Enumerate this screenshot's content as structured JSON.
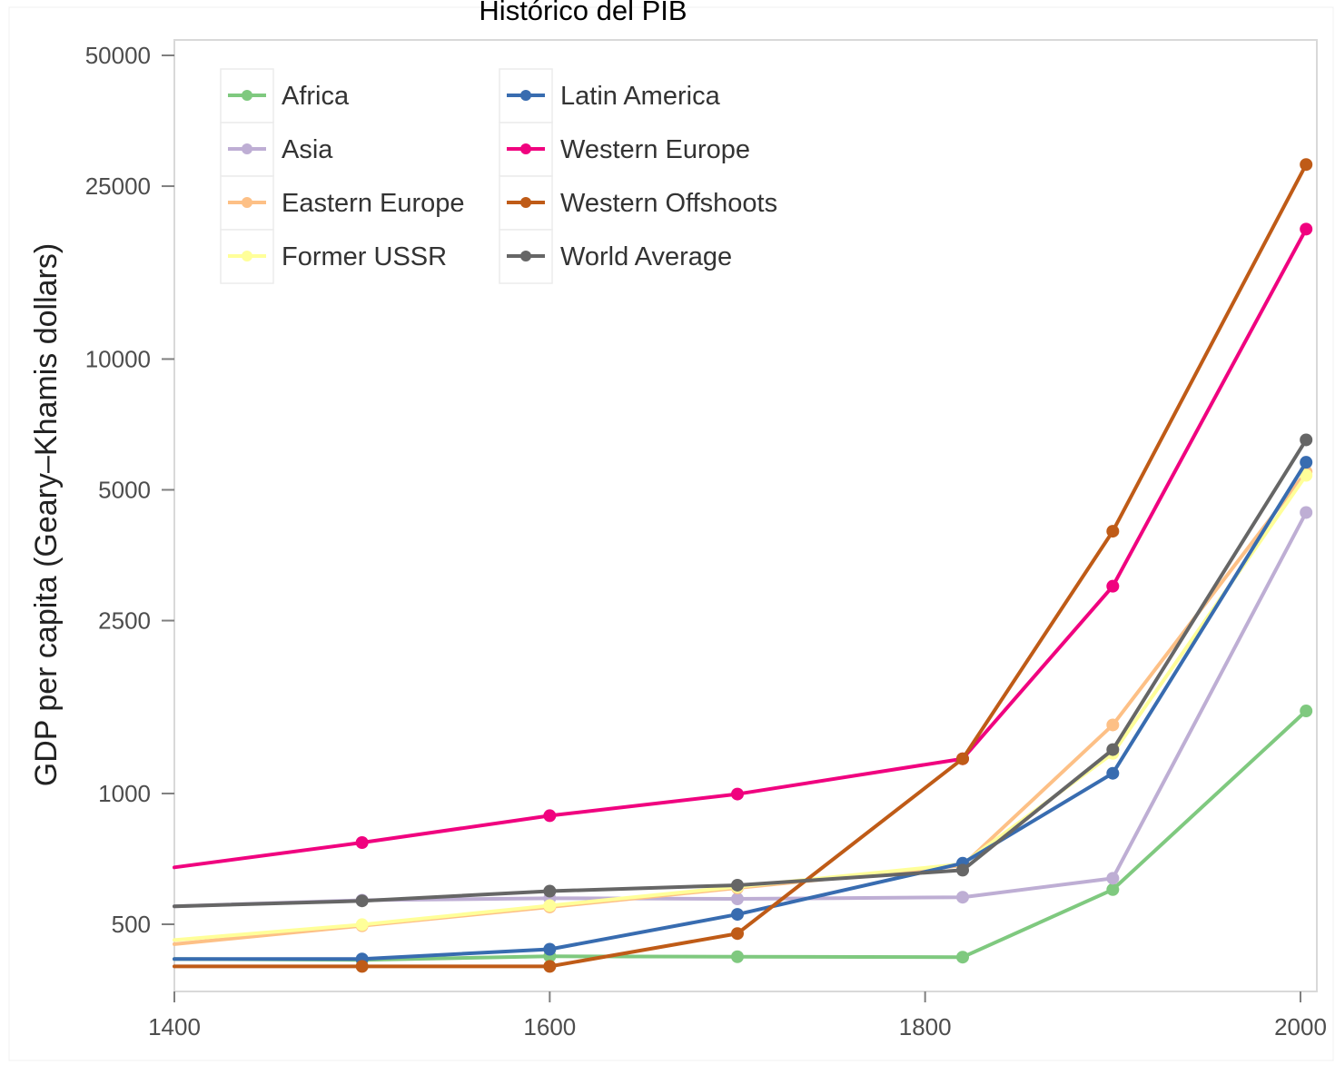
{
  "chart_data": {
    "type": "line",
    "title": "Histórico del  PIB",
    "xlabel": "",
    "ylabel": "GDP per capita (Geary–Khamis dollars)",
    "x_ticks": [
      "1400",
      "1600",
      "1800",
      "2000"
    ],
    "y_ticks": [
      "500",
      "1000",
      "2500",
      "5000",
      "10000",
      "25000",
      "50000"
    ],
    "y_scale": "log",
    "xlim": [
      1400,
      2003
    ],
    "ylim": [
      340,
      52000
    ],
    "grid": false,
    "legend_position": "top-left",
    "series": [
      {
        "name": "Africa",
        "color": "#7fc97f",
        "x": [
          1400,
          1500,
          1600,
          1700,
          1820,
          1900,
          2003
        ],
        "y": [
          416,
          414,
          422,
          421,
          420,
          601,
          1549
        ]
      },
      {
        "name": "Asia",
        "color": "#beaed4",
        "x": [
          1400,
          1500,
          1600,
          1700,
          1820,
          1900,
          2003
        ],
        "y": [
          550,
          568,
          574,
          572,
          577,
          638,
          4434
        ]
      },
      {
        "name": "Eastern Europe",
        "color": "#fdc086",
        "x": [
          1400,
          1500,
          1600,
          1700,
          1820,
          1900,
          2003
        ],
        "y": [
          450,
          496,
          548,
          606,
          683,
          1438,
          5500
        ]
      },
      {
        "name": "Former USSR",
        "color": "#ffff99",
        "x": [
          1400,
          1500,
          1600,
          1700,
          1820,
          1900,
          2003
        ],
        "y": [
          460,
          499,
          552,
          610,
          688,
          1237,
          5400
        ]
      },
      {
        "name": "Latin America",
        "color": "#386cb0",
        "x": [
          1400,
          1500,
          1600,
          1700,
          1820,
          1900,
          2003
        ],
        "y": [
          416,
          416,
          438,
          527,
          691,
          1113,
          5786
        ]
      },
      {
        "name": "Western Europe",
        "color": "#f0027f",
        "x": [
          1400,
          1500,
          1600,
          1700,
          1820,
          1900,
          2003
        ],
        "y": [
          676,
          771,
          889,
          997,
          1202,
          3000,
          19912
        ]
      },
      {
        "name": "Western Offshoots",
        "color": "#bf5b17",
        "x": [
          1400,
          1500,
          1600,
          1700,
          1820,
          1900,
          2003
        ],
        "y": [
          400,
          400,
          400,
          476,
          1202,
          4015,
          28039
        ]
      },
      {
        "name": "World Average",
        "color": "#666666",
        "x": [
          1400,
          1500,
          1600,
          1700,
          1820,
          1900,
          2003
        ],
        "y": [
          550,
          566,
          596,
          615,
          666,
          1262,
          6516
        ]
      }
    ]
  }
}
